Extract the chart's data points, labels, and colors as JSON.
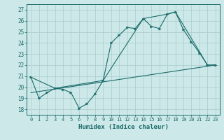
{
  "xlabel": "Humidex (Indice chaleur)",
  "xlim": [
    -0.5,
    23.5
  ],
  "ylim": [
    17.5,
    27.5
  ],
  "yticks": [
    18,
    19,
    20,
    21,
    22,
    23,
    24,
    25,
    26,
    27
  ],
  "xticks": [
    0,
    1,
    2,
    3,
    4,
    5,
    6,
    7,
    8,
    9,
    10,
    11,
    12,
    13,
    14,
    15,
    16,
    17,
    18,
    19,
    20,
    21,
    22,
    23
  ],
  "bg_color": "#cde8e8",
  "grid_color": "#a8cccc",
  "line_color": "#1a6b6b",
  "line1_x": [
    0,
    1,
    2,
    3,
    4,
    5,
    6,
    7,
    8,
    9,
    10,
    11,
    12,
    13,
    14,
    15,
    16,
    17,
    18,
    19,
    20,
    21,
    22,
    23
  ],
  "line1_y": [
    20.9,
    19.0,
    19.5,
    19.9,
    19.8,
    19.5,
    18.1,
    18.5,
    19.4,
    20.6,
    24.0,
    24.7,
    25.4,
    25.3,
    26.2,
    25.5,
    25.3,
    26.6,
    26.8,
    25.2,
    24.1,
    23.1,
    22.0,
    22.0
  ],
  "line2_x": [
    0,
    3,
    9,
    14,
    17,
    18,
    22,
    23
  ],
  "line2_y": [
    20.9,
    19.9,
    20.6,
    26.2,
    26.6,
    26.8,
    22.0,
    22.0
  ],
  "line3_x": [
    0,
    23
  ],
  "line3_y": [
    19.5,
    22.0
  ]
}
